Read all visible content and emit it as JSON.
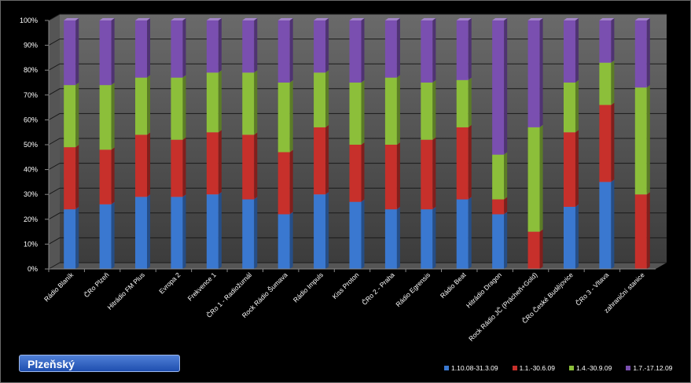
{
  "badge": {
    "label": "Plzeňský"
  },
  "chart_data": {
    "type": "bar",
    "stacked": "100%",
    "three_d": true,
    "categories": [
      "Rádio Blaník",
      "ČRo Plzeň",
      "Hitrádio FM Plus",
      "Evropa 2",
      "Frekvence 1",
      "ČRo 1 - Radiožurnál",
      "Rock Rádio Šumava",
      "Rádio Impuls",
      "Kiss Proton",
      "ČRo 2 - Praha",
      "Rádio Egrensis",
      "Rádio Beat",
      "Hitrádio Dragon",
      "Rock Rádio JČ (Prácheň+Gold)",
      "ČRo České Budějovice",
      "ČRo 3 - Vltava",
      "zahraniční stanice"
    ],
    "series": [
      {
        "name": "1.10.08-31.3.09",
        "color": "#3a78d0",
        "values": [
          24,
          26,
          29,
          29,
          30,
          28,
          22,
          30,
          27,
          24,
          24,
          28,
          22,
          0,
          25,
          35,
          0
        ]
      },
      {
        "name": "1.1.-30.6.09",
        "color": "#c7302b",
        "values": [
          25,
          22,
          25,
          23,
          25,
          26,
          25,
          27,
          23,
          26,
          28,
          29,
          6,
          15,
          30,
          31,
          30
        ]
      },
      {
        "name": "1.4.-30.9.09",
        "color": "#8cbf3a",
        "values": [
          25,
          26,
          23,
          25,
          24,
          25,
          28,
          22,
          25,
          27,
          23,
          19,
          18,
          42,
          20,
          17,
          43
        ]
      },
      {
        "name": "1.7.-17.12.09",
        "color": "#7a4fb0",
        "values": [
          26,
          26,
          23,
          23,
          21,
          21,
          25,
          21,
          25,
          23,
          25,
          24,
          54,
          43,
          25,
          17,
          27
        ]
      }
    ],
    "y_ticks": [
      "0%",
      "10%",
      "20%",
      "30%",
      "40%",
      "50%",
      "60%",
      "70%",
      "80%",
      "90%",
      "100%"
    ],
    "ylim": [
      0,
      100
    ],
    "grid": true,
    "legend_position": "bottom-right"
  }
}
